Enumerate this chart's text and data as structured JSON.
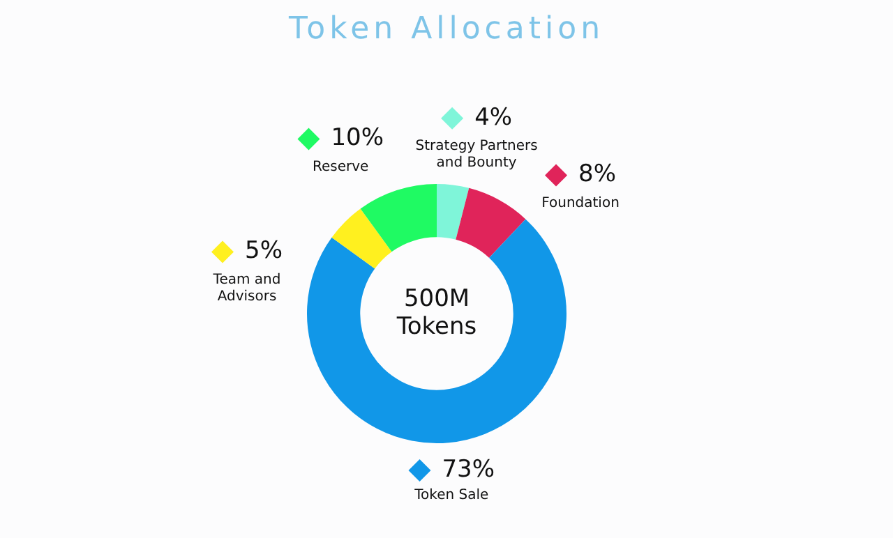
{
  "chart_data": {
    "type": "donut",
    "title": "Token Allocation",
    "categories": [
      "Strategy Partners and Bounty",
      "Foundation",
      "Token Sale",
      "Team and Advisors",
      "Reserve"
    ],
    "values": [
      4,
      8,
      73,
      5,
      10
    ],
    "value_labels": [
      "4%",
      "8%",
      "73%",
      "5%",
      "10%"
    ],
    "colors": [
      "#7ff5d9",
      "#e0245a",
      "#1197e8",
      "#fff01f",
      "#1ffa63"
    ],
    "annotations": [
      "500M Tokens"
    ],
    "legend": "top"
  }
}
